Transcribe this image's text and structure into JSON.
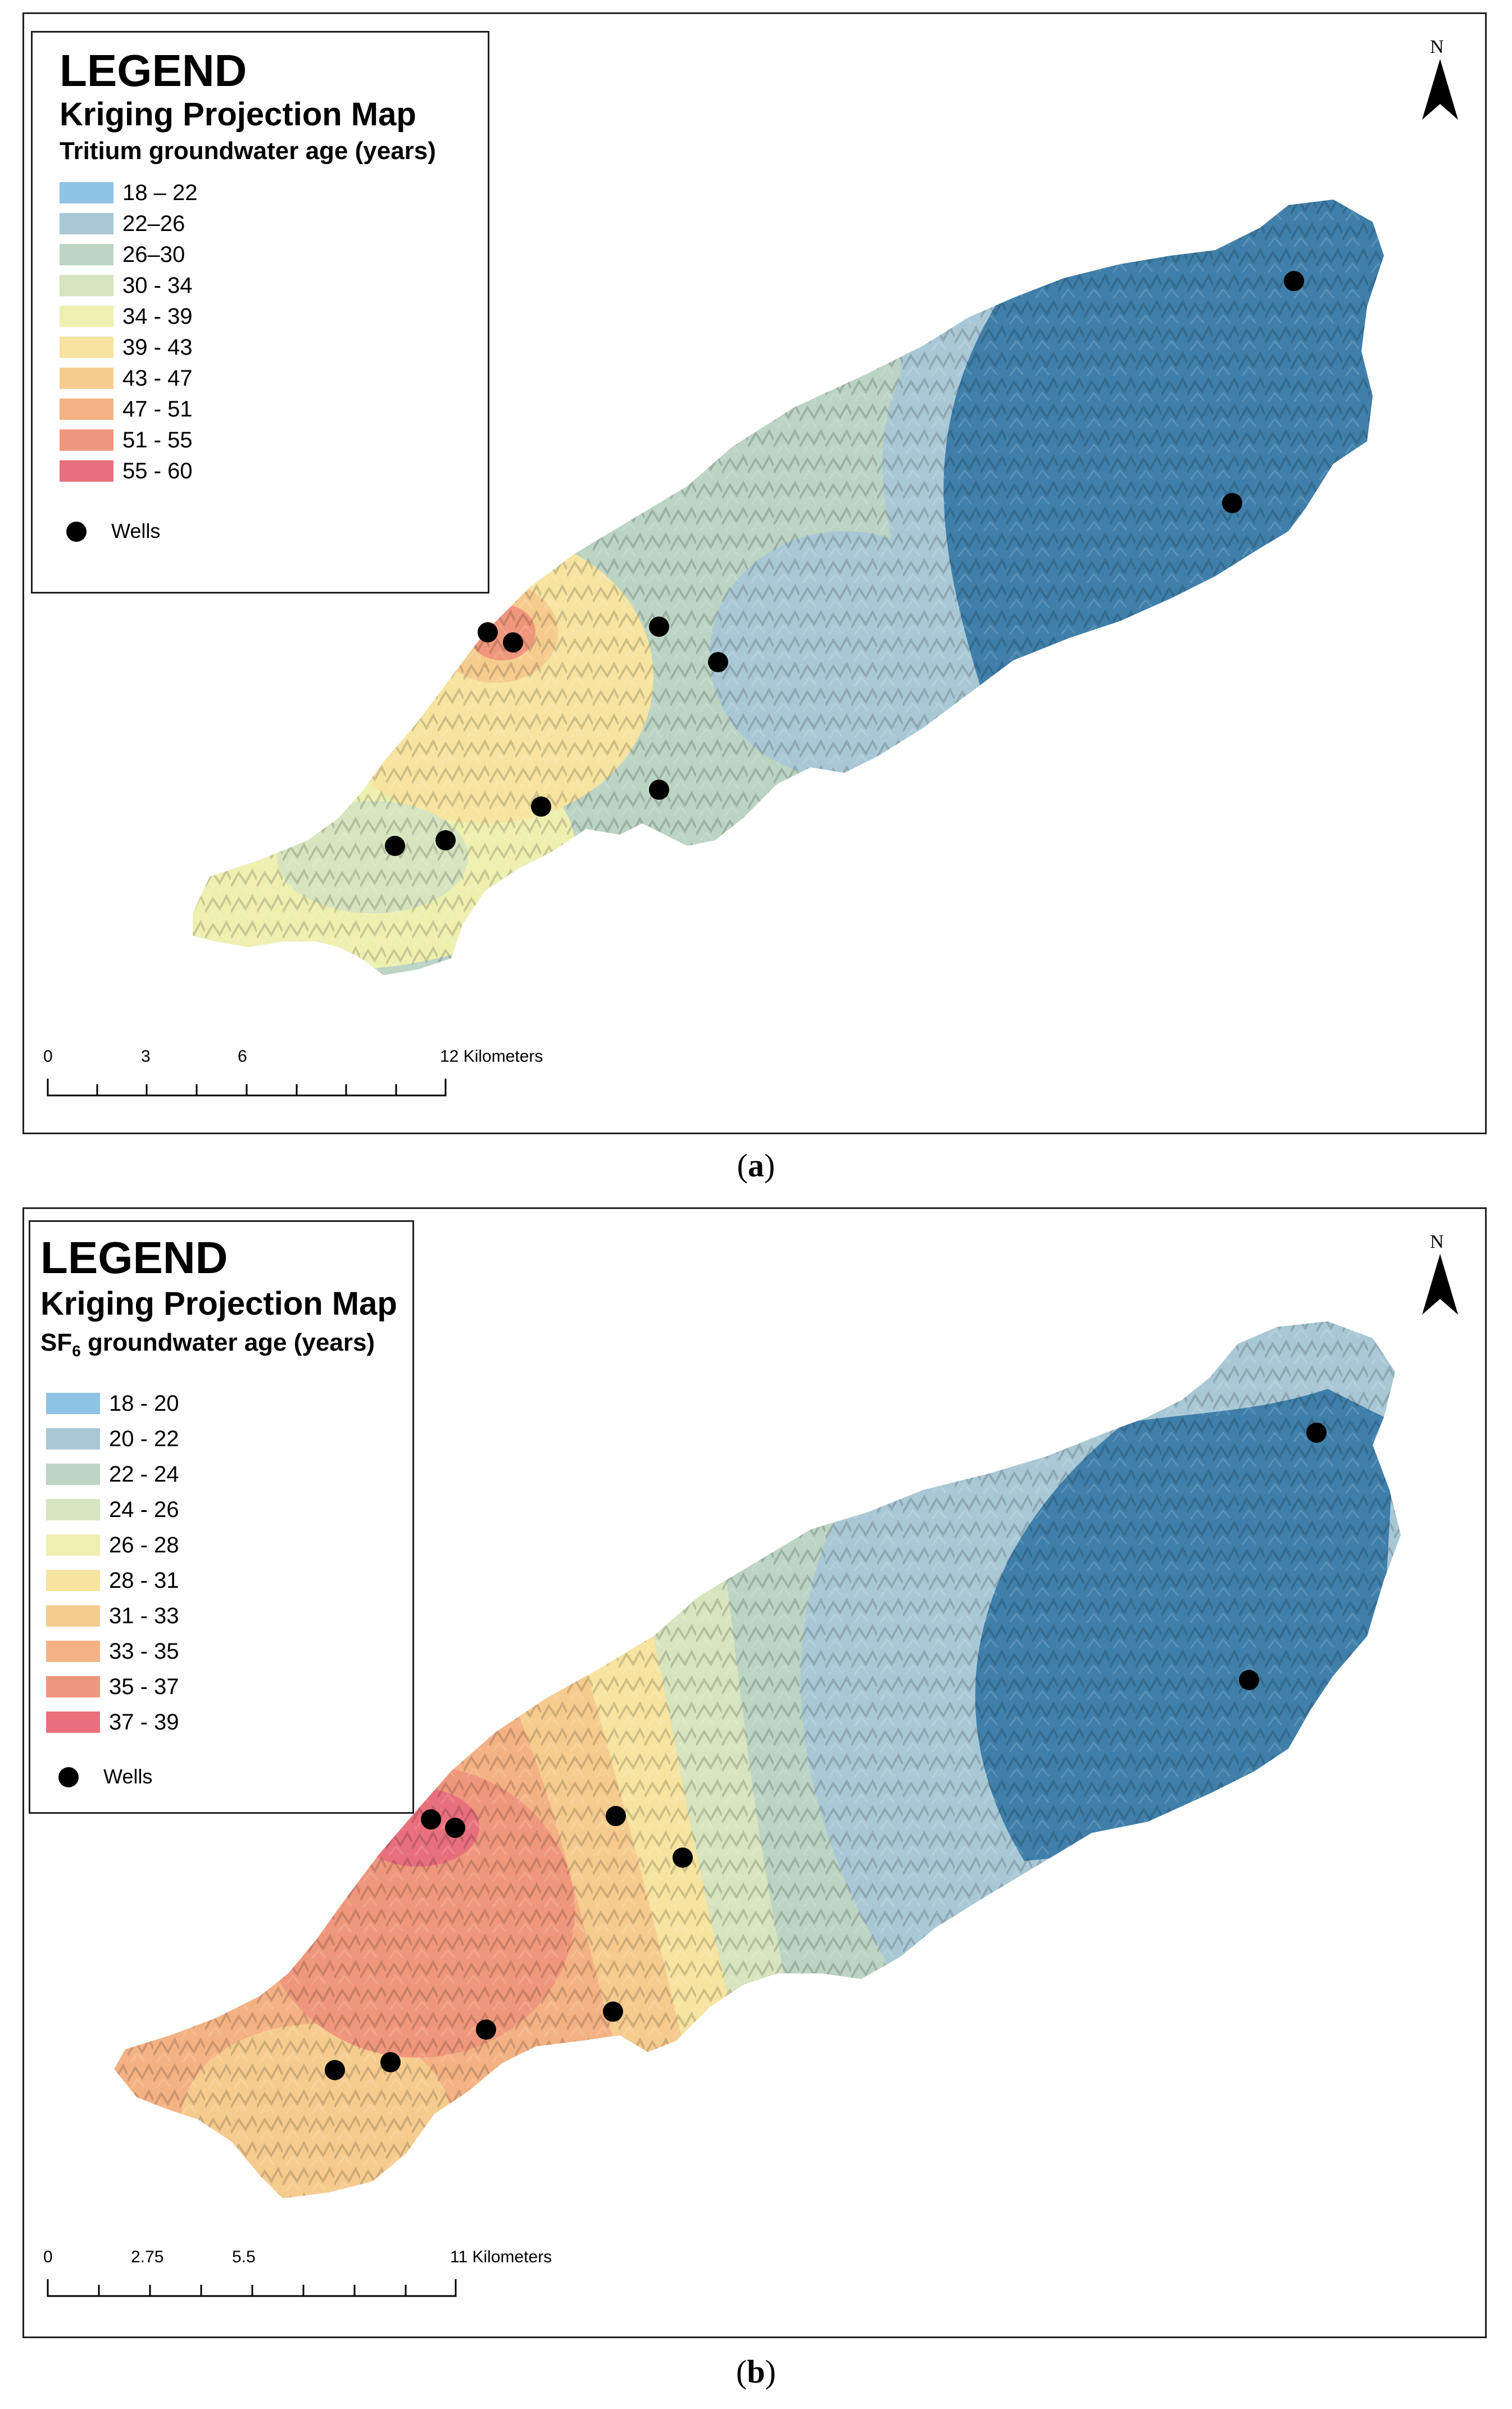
{
  "panels": [
    {
      "legend": {
        "heading": "LEGEND",
        "subheading": "Kriging Projection Map",
        "variable": "Tritium groundwater age (years)",
        "classes": [
          {
            "label": "18 – 22",
            "color": "#8ec3e6"
          },
          {
            "label": "22–26",
            "color": "#a9c8d6"
          },
          {
            "label": "26–30",
            "color": "#bcd4c4"
          },
          {
            "label": "30 - 34",
            "color": "#d6e4bf"
          },
          {
            "label": "34 - 39",
            "color": "#eef0b0"
          },
          {
            "label": "39 - 43",
            "color": "#f6e4a0"
          },
          {
            "label": "43 - 47",
            "color": "#f6cc8e"
          },
          {
            "label": "47 - 51",
            "color": "#f4b284"
          },
          {
            "label": "51 - 55",
            "color": "#ef977c"
          },
          {
            "label": "55 - 60",
            "color": "#e8707c"
          }
        ],
        "wells_label": "Wells"
      },
      "scale": {
        "ticks": [
          "0",
          "3",
          "6",
          "12 Kilometers"
        ]
      },
      "north_label": "N",
      "caption_label": "a"
    },
    {
      "legend": {
        "heading": "LEGEND",
        "subheading": "Kriging Projection Map",
        "variable_prefix": "SF",
        "variable_sub": "6",
        "variable_rest": " groundwater age (years)",
        "classes": [
          {
            "label": "18 - 20",
            "color": "#8ec3e6"
          },
          {
            "label": "20 - 22",
            "color": "#a9c8d6"
          },
          {
            "label": "22 - 24",
            "color": "#bcd4c4"
          },
          {
            "label": "24 - 26",
            "color": "#d6e4bf"
          },
          {
            "label": "26 - 28",
            "color": "#eef0b0"
          },
          {
            "label": "28 - 31",
            "color": "#f6e4a0"
          },
          {
            "label": "31 - 33",
            "color": "#f6cc8e"
          },
          {
            "label": "33 - 35",
            "color": "#f4b284"
          },
          {
            "label": "35 - 37",
            "color": "#ef977c"
          },
          {
            "label": "37 - 39",
            "color": "#e8707c"
          }
        ],
        "wells_label": "Wells"
      },
      "scale": {
        "ticks": [
          "0",
          "2.75",
          "5.5",
          "11 Kilometers"
        ]
      },
      "north_label": "N",
      "caption_label": "b"
    }
  ],
  "colors": {
    "outline": "#222222",
    "dark_blue": "#3f7faa",
    "terrain_shade": "#000000"
  }
}
